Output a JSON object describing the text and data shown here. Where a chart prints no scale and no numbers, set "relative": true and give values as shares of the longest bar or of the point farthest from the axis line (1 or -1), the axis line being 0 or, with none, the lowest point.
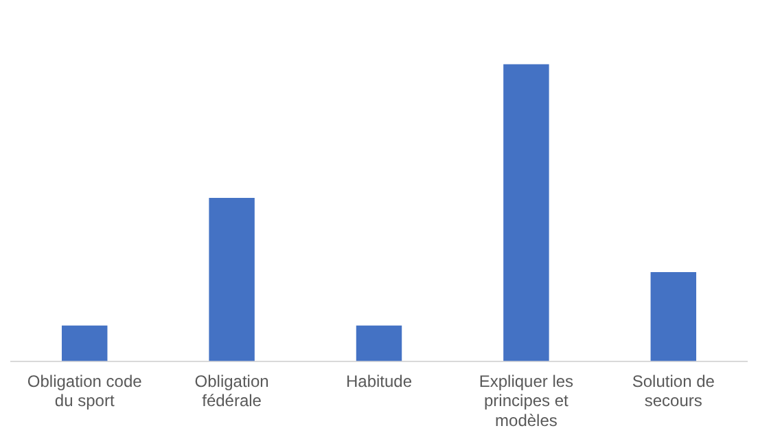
{
  "chart_data": {
    "type": "bar",
    "relative": true,
    "categories": [
      "Obligation code du sport",
      "Obligation fédérale",
      "Habitude",
      "Expliquer les principes et modèles",
      "Solution de secours"
    ],
    "values": [
      0.12,
      0.55,
      0.12,
      1,
      0.3
    ],
    "color": "#4472c4",
    "grid": false,
    "legend": false
  }
}
